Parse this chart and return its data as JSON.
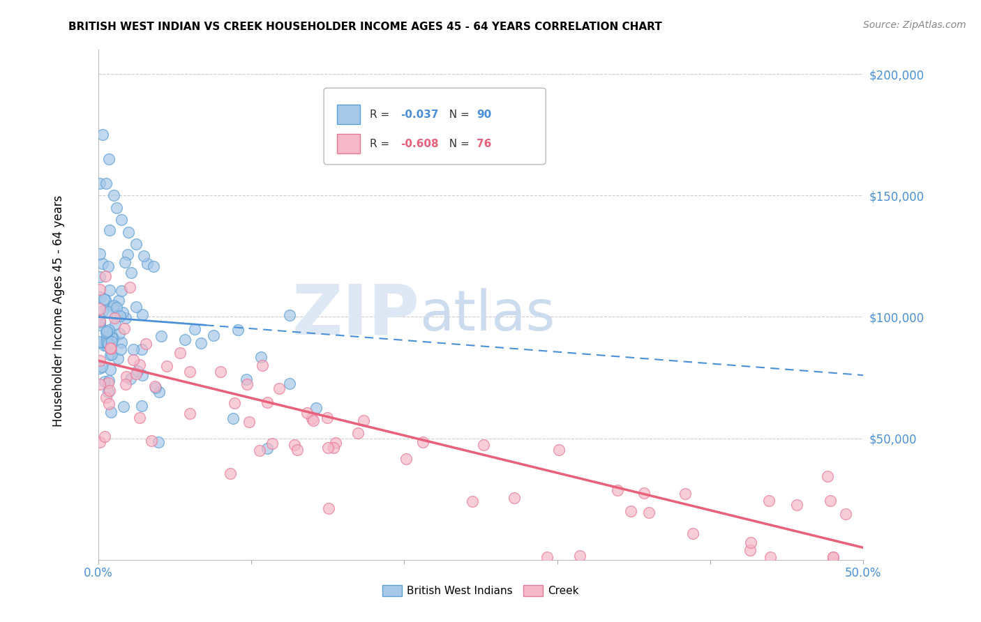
{
  "title": "BRITISH WEST INDIAN VS CREEK HOUSEHOLDER INCOME AGES 45 - 64 YEARS CORRELATION CHART",
  "source": "Source: ZipAtlas.com",
  "ylabel": "Householder Income Ages 45 - 64 years",
  "xlim": [
    0.0,
    0.5
  ],
  "ylim": [
    0,
    210000
  ],
  "ytick_vals": [
    0,
    50000,
    100000,
    150000,
    200000
  ],
  "ytick_labels": [
    "",
    "$50,000",
    "$100,000",
    "$150,000",
    "$200,000"
  ],
  "color_blue_fill": "#a8c8e8",
  "color_blue_edge": "#5a9fd4",
  "color_blue_line": "#4a90d9",
  "color_pink_fill": "#f4b8c8",
  "color_pink_edge": "#e87898",
  "color_pink_line": "#e8607a",
  "color_ytick": "#4a90d9",
  "color_xtick": "#4a90d9",
  "grid_color": "#cccccc",
  "watermark_zip_color": "#dde8f4",
  "watermark_atlas_color": "#ccdcee"
}
